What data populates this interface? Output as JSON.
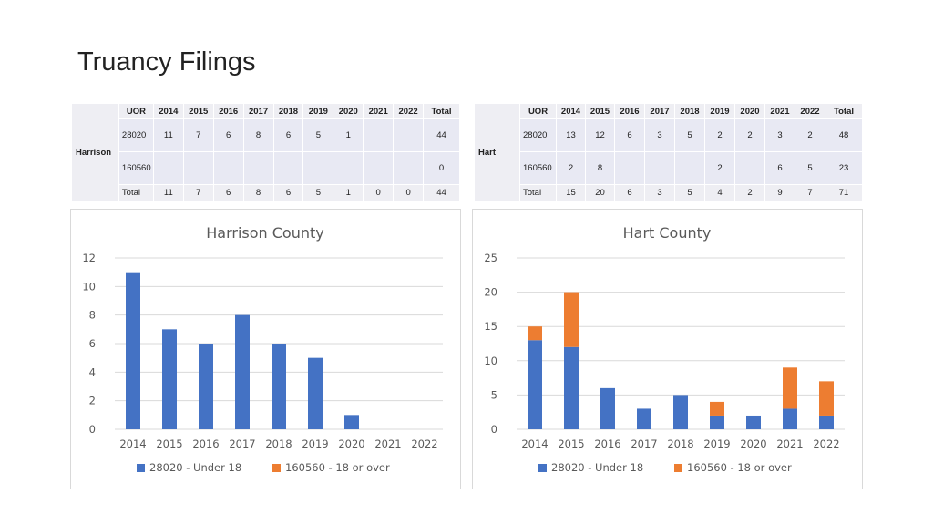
{
  "page": {
    "title": "Truancy Filings"
  },
  "tables": [
    {
      "county": "Harrison",
      "header": [
        "UOR",
        "2014",
        "2015",
        "2016",
        "2017",
        "2018",
        "2019",
        "2020",
        "2021",
        "2022",
        "Total"
      ],
      "rows": [
        [
          "28020",
          "11",
          "7",
          "6",
          "8",
          "6",
          "5",
          "1",
          "",
          "",
          "44"
        ],
        [
          "160560",
          "",
          "",
          "",
          "",
          "",
          "",
          "",
          "",
          "",
          "0"
        ]
      ],
      "total": [
        "Total",
        "11",
        "7",
        "6",
        "8",
        "6",
        "5",
        "1",
        "0",
        "0",
        "44"
      ]
    },
    {
      "county": "Hart",
      "header": [
        "UOR",
        "2014",
        "2015",
        "2016",
        "2017",
        "2018",
        "2019",
        "2020",
        "2021",
        "2022",
        "Total"
      ],
      "rows": [
        [
          "28020",
          "13",
          "12",
          "6",
          "3",
          "5",
          "2",
          "2",
          "3",
          "2",
          "48"
        ],
        [
          "160560",
          "2",
          "8",
          "",
          "",
          "",
          "2",
          "",
          "6",
          "5",
          "23"
        ]
      ],
      "total": [
        "Total",
        "15",
        "20",
        "6",
        "3",
        "5",
        "4",
        "2",
        "9",
        "7",
        "71"
      ]
    }
  ],
  "chart_data": [
    {
      "type": "bar",
      "stacked": true,
      "title": "Harrison County",
      "categories": [
        "2014",
        "2015",
        "2016",
        "2017",
        "2018",
        "2019",
        "2020",
        "2021",
        "2022"
      ],
      "series": [
        {
          "name": "28020 - Under 18",
          "values": [
            11,
            7,
            6,
            8,
            6,
            5,
            1,
            0,
            0
          ],
          "color": "#4472c4"
        },
        {
          "name": "160560 - 18 or over",
          "values": [
            0,
            0,
            0,
            0,
            0,
            0,
            0,
            0,
            0
          ],
          "color": "#ed7d31"
        }
      ],
      "ylim": [
        0,
        12
      ],
      "yticks": [
        0,
        2,
        4,
        6,
        8,
        10,
        12
      ],
      "grid": true,
      "legend": "bottom"
    },
    {
      "type": "bar",
      "stacked": true,
      "title": "Hart County",
      "categories": [
        "2014",
        "2015",
        "2016",
        "2017",
        "2018",
        "2019",
        "2020",
        "2021",
        "2022"
      ],
      "series": [
        {
          "name": "28020 - Under 18",
          "values": [
            13,
            12,
            6,
            3,
            5,
            2,
            2,
            3,
            2
          ],
          "color": "#4472c4"
        },
        {
          "name": "160560 - 18 or over",
          "values": [
            2,
            8,
            0,
            0,
            0,
            2,
            0,
            6,
            5
          ],
          "color": "#ed7d31"
        }
      ],
      "ylim": [
        0,
        25
      ],
      "yticks": [
        0,
        5,
        10,
        15,
        20,
        25
      ],
      "grid": true,
      "legend": "bottom"
    }
  ]
}
